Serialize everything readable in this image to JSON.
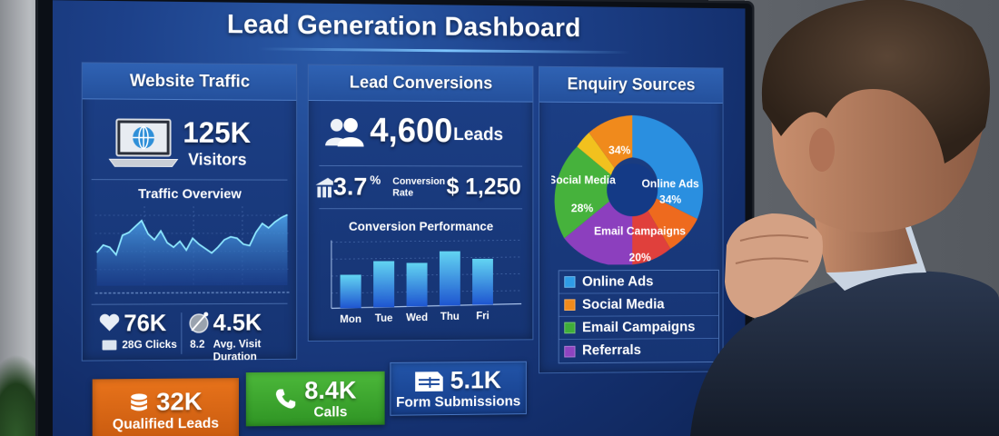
{
  "dashboard": {
    "title": "Lead Generation Dashboard",
    "colors": {
      "screen_bg": "#1d418a",
      "panel_header": "#2f62b3",
      "line": "#7ee0ff",
      "bar_top": "#5fd0f0",
      "bar_bottom": "#1e55d0"
    }
  },
  "website_traffic": {
    "header": "Website Traffic",
    "icon": "laptop-globe-icon",
    "visitors_value": "125K",
    "visitors_label": "Visitors",
    "subtitle": "Traffic Overview",
    "metrics": [
      {
        "icon": "heart-cursor-icon",
        "value": "76K",
        "sub_icon": "envelope-icon",
        "label": "28G Clicks"
      },
      {
        "icon": "clock-needle-icon",
        "value": "4.5K",
        "prefix": "8.2",
        "label": "Avg. Visit Duration"
      }
    ]
  },
  "lead_conversions": {
    "header": "Lead Conversions",
    "icon": "users-icon",
    "leads_value": "4,600",
    "leads_label": "Leads",
    "rate_icon": "bar-up-icon",
    "rate_value": "3.7",
    "rate_symbol": "%",
    "rate_label_1": "Conversion",
    "rate_label_2": "Rate",
    "revenue_value": "$ 1,250",
    "subtitle": "Conversion Performance"
  },
  "enquiry_sources": {
    "header": "Enquiry Sources",
    "slice_labels": [
      {
        "name": "Online Ads",
        "pct": "34%"
      },
      {
        "name": "",
        "pct": "34%"
      },
      {
        "name": "Social Media",
        "pct": "28%"
      },
      {
        "name": "Email Campaigns",
        "pct": "20%"
      }
    ],
    "legend": [
      {
        "label": "Online Ads",
        "color": "#2f9ce6"
      },
      {
        "label": "Social Media",
        "color": "#f08a1c"
      },
      {
        "label": "Email Campaigns",
        "color": "#3fae3a"
      },
      {
        "label": "Referrals",
        "color": "#8e44c0"
      }
    ]
  },
  "kpi_tiles": [
    {
      "icon": "database-icon",
      "value": "32K",
      "label": "Qualified Leads",
      "color": "#e8731b"
    },
    {
      "icon": "phone-icon",
      "value": "8.4K",
      "label": "Calls",
      "color": "#3fa830"
    },
    {
      "icon": "form-icon",
      "value": "5.1K",
      "label": "Form Submissions",
      "color": "#1d4a9c"
    }
  ],
  "chart_data": [
    {
      "type": "area",
      "title": "Traffic Overview",
      "xlabel": "",
      "ylabel": "",
      "grid": true,
      "x": [
        0,
        1,
        2,
        3,
        4,
        5,
        6,
        7,
        8,
        9,
        10,
        11,
        12,
        13,
        14,
        15,
        16,
        17,
        18,
        19,
        20,
        21,
        22,
        23,
        24,
        25,
        26,
        27,
        28,
        29,
        30
      ],
      "values": [
        45,
        55,
        52,
        42,
        68,
        72,
        80,
        88,
        70,
        62,
        74,
        58,
        52,
        60,
        48,
        64,
        56,
        50,
        44,
        52,
        62,
        66,
        64,
        56,
        54,
        72,
        84,
        78,
        86,
        92,
        96
      ]
    },
    {
      "type": "bar",
      "title": "Conversion Performance",
      "categories": [
        "Mon",
        "Tue",
        "Wed",
        "Thu",
        "Fri"
      ],
      "values": [
        52,
        72,
        68,
        85,
        72
      ],
      "xlabel": "",
      "ylabel": "",
      "grid": true,
      "ylim": [
        0,
        100
      ]
    },
    {
      "type": "pie",
      "title": "Enquiry Sources",
      "categories": [
        "Online Ads",
        "Social Media (orange)",
        "Social Media",
        "Email Campaigns"
      ],
      "values": [
        34,
        34,
        28,
        20
      ],
      "legend": [
        "Online Ads",
        "Social Media",
        "Email Campaigns",
        "Referrals"
      ],
      "legend_position": "bottom",
      "donut": true
    }
  ]
}
